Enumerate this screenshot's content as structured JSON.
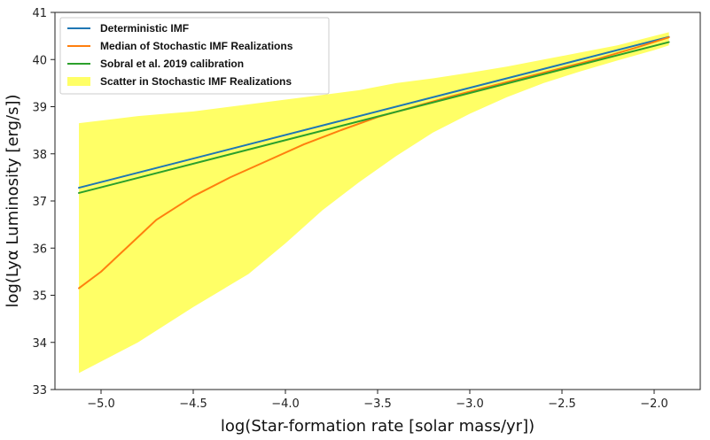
{
  "chart_data": {
    "type": "line",
    "title": "",
    "xlabel": "log(Star-formation rate [solar mass/yr])",
    "ylabel": "log(Lyα Luminosity [erg/s])",
    "xlim": [
      -5.25,
      -1.75
    ],
    "ylim": [
      33,
      41
    ],
    "xticks": [
      -5.0,
      -4.5,
      -4.0,
      -3.5,
      -3.0,
      -2.5,
      -2.0
    ],
    "xtick_labels": [
      "−5.0",
      "−4.5",
      "−4.0",
      "−3.5",
      "−3.0",
      "−2.5",
      "−2.0"
    ],
    "yticks": [
      33,
      34,
      35,
      36,
      37,
      38,
      39,
      40,
      41
    ],
    "ytick_labels": [
      "33",
      "34",
      "35",
      "36",
      "37",
      "38",
      "39",
      "40",
      "41"
    ],
    "grid": false,
    "legend": "top-left",
    "series": [
      {
        "name": "Deterministic IMF",
        "color": "#1f77b4",
        "x": [
          -5.12,
          -1.92
        ],
        "y": [
          37.28,
          40.48
        ]
      },
      {
        "name": "Median of Stochastic IMF Realizations",
        "color": "#ff7f0e",
        "x": [
          -5.12,
          -5.0,
          -4.85,
          -4.7,
          -4.5,
          -4.3,
          -4.1,
          -3.9,
          -3.7,
          -3.5,
          -3.3,
          -3.1,
          -2.9,
          -2.7,
          -2.5,
          -2.3,
          -2.1,
          -1.92
        ],
        "y": [
          35.15,
          35.5,
          36.05,
          36.6,
          37.1,
          37.5,
          37.85,
          38.2,
          38.5,
          38.78,
          39.0,
          39.22,
          39.42,
          39.62,
          39.82,
          40.02,
          40.25,
          40.47
        ]
      },
      {
        "name": "Sobral et al. 2019 calibration",
        "color": "#2ca02c",
        "x": [
          -5.12,
          -1.92
        ],
        "y": [
          37.17,
          40.37
        ]
      }
    ],
    "band": {
      "name": "Scatter in Stochastic IMF Realizations",
      "color": "#ffff66",
      "x": [
        -5.12,
        -4.8,
        -4.5,
        -4.2,
        -4.0,
        -3.8,
        -3.6,
        -3.4,
        -3.2,
        -3.0,
        -2.8,
        -2.6,
        -2.4,
        -2.2,
        -2.0,
        -1.92
      ],
      "upper": [
        38.65,
        38.8,
        38.9,
        39.05,
        39.15,
        39.25,
        39.35,
        39.5,
        39.6,
        39.72,
        39.85,
        40.0,
        40.15,
        40.3,
        40.5,
        40.58
      ],
      "lower": [
        33.35,
        34.0,
        34.75,
        35.45,
        36.1,
        36.8,
        37.4,
        37.95,
        38.45,
        38.85,
        39.2,
        39.5,
        39.75,
        39.98,
        40.2,
        40.3
      ]
    }
  }
}
